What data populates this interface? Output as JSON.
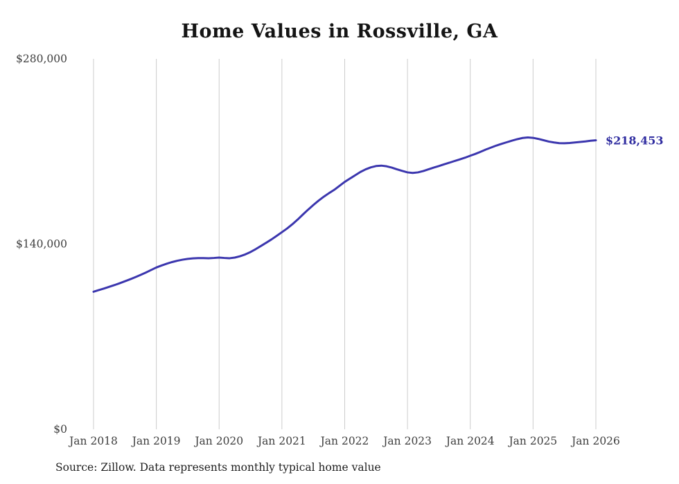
{
  "title": "Home Values in Rossville, GA",
  "source_note": "Source: Zillow. Data represents monthly typical home value",
  "colors": {
    "line": "#3b36ae",
    "grid": "#cccccc",
    "tick_text": "#3d3d3d",
    "end_label": "#2f2ca0",
    "background": "#ffffff"
  },
  "chart_data": {
    "type": "line",
    "title": "Home Values in Rossville, GA",
    "series_name": "Typical home value (monthly)",
    "frequency": "monthly",
    "x_start": "Jan 2018",
    "x_end": "Jan 2026",
    "x_tick_labels": [
      "Jan 2018",
      "Jan 2019",
      "Jan 2020",
      "Jan 2021",
      "Jan 2022",
      "Jan 2023",
      "Jan 2024",
      "Jan 2025",
      "Jan 2026"
    ],
    "y_ticks": [
      0,
      140000,
      280000
    ],
    "y_tick_labels": [
      "$0",
      "$140,000",
      "$280,000"
    ],
    "ylim": [
      0,
      280000
    ],
    "grid": "vertical-only",
    "legend": "none",
    "final_value": 218453,
    "final_value_label": "$218,453",
    "values": [
      104000,
      105200,
      106400,
      107700,
      109000,
      110400,
      111900,
      113400,
      115000,
      116700,
      118500,
      120400,
      122300,
      123800,
      125200,
      126400,
      127400,
      128200,
      128800,
      129200,
      129400,
      129400,
      129300,
      129500,
      129800,
      129500,
      129300,
      129800,
      130800,
      132200,
      134000,
      136200,
      138600,
      141000,
      143500,
      146200,
      149000,
      151800,
      155000,
      158500,
      162300,
      166000,
      169500,
      172800,
      175800,
      178500,
      181000,
      184000,
      187000,
      189500,
      192000,
      194500,
      196500,
      198000,
      199000,
      199300,
      198800,
      197800,
      196500,
      195300,
      194200,
      193800,
      194200,
      195200,
      196500,
      197800,
      199000,
      200300,
      201500,
      202800,
      204000,
      205300,
      206800,
      208200,
      209800,
      211500,
      213000,
      214500,
      215800,
      217000,
      218200,
      219300,
      220200,
      220600,
      220300,
      219500,
      218500,
      217500,
      216800,
      216300,
      216200,
      216400,
      216800,
      217200,
      217600,
      218100,
      218453
    ]
  }
}
